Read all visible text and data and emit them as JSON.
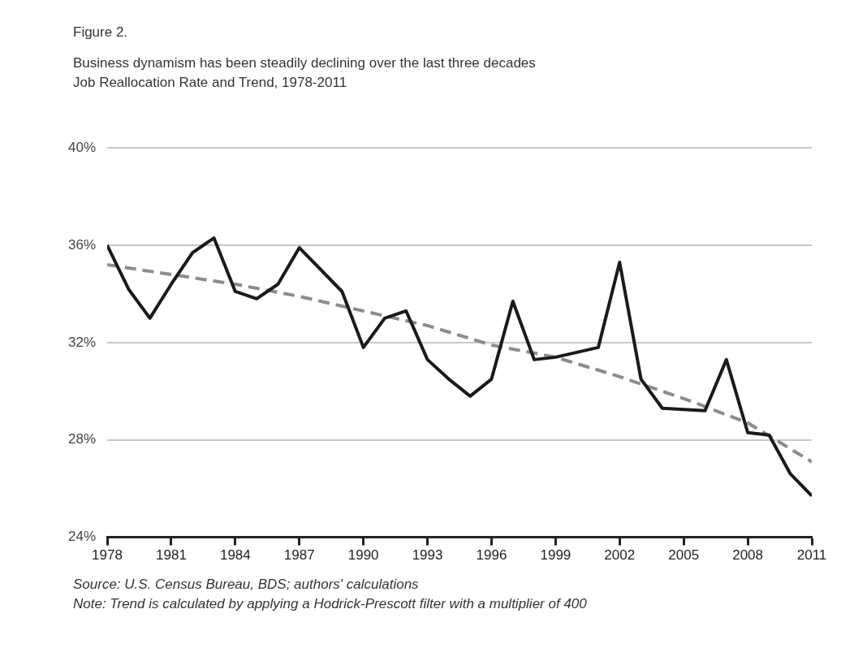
{
  "chart_data": {
    "type": "line",
    "title": "Figure 2.",
    "subtitle": "Business dynamism has been steadily declining over the last three decades\nJob Reallocation Rate and Trend, 1978-2011",
    "x": [
      1978,
      1979,
      1980,
      1981,
      1982,
      1983,
      1984,
      1985,
      1986,
      1987,
      1988,
      1989,
      1990,
      1991,
      1992,
      1993,
      1994,
      1995,
      1996,
      1997,
      1998,
      1999,
      2000,
      2001,
      2002,
      2003,
      2004,
      2005,
      2006,
      2007,
      2008,
      2009,
      2010,
      2011
    ],
    "series": [
      {
        "color": "#1a1a1a",
        "line_style": "solid",
        "values": [
          36.0,
          34.2,
          33.0,
          34.4,
          35.7,
          36.3,
          34.1,
          33.8,
          34.4,
          35.9,
          35.0,
          34.1,
          31.8,
          33.0,
          33.3,
          31.3,
          30.5,
          29.8,
          30.5,
          33.7,
          31.3,
          31.4,
          31.6,
          31.8,
          35.3,
          30.5,
          29.3,
          29.25,
          29.2,
          31.3,
          28.3,
          28.2,
          26.6,
          25.7
        ]
      },
      {
        "color": "#8c8c8c",
        "line_style": "dashed",
        "values": [
          35.2,
          35.07,
          34.93,
          34.8,
          34.67,
          34.53,
          34.4,
          34.23,
          34.07,
          33.9,
          33.7,
          33.5,
          33.3,
          33.1,
          32.9,
          32.7,
          32.43,
          32.17,
          31.9,
          31.73,
          31.57,
          31.4,
          31.13,
          30.87,
          30.6,
          30.3,
          30.0,
          29.7,
          29.37,
          29.03,
          28.7,
          28.17,
          27.63,
          27.1
        ]
      }
    ],
    "xlim": [
      1978,
      2011
    ],
    "xticks": [
      1978,
      1981,
      1984,
      1987,
      1990,
      1993,
      1996,
      1999,
      2002,
      2005,
      2008,
      2011
    ],
    "ylim": [
      24,
      40
    ],
    "yticks": [
      {
        "value": 24,
        "label": "24%"
      },
      {
        "value": 28,
        "label": "28%"
      },
      {
        "value": 32,
        "label": "32%"
      },
      {
        "value": 36,
        "label": "36%"
      },
      {
        "value": 40,
        "label": "40%"
      }
    ],
    "grid": "y",
    "legend": false,
    "marker": "none",
    "annotations": [
      "Source: U.S. Census Bureau, BDS; authors' calculations",
      "Note: Trend is calculated by applying a Hodrick-Prescott filter with a multiplier of 400"
    ]
  }
}
